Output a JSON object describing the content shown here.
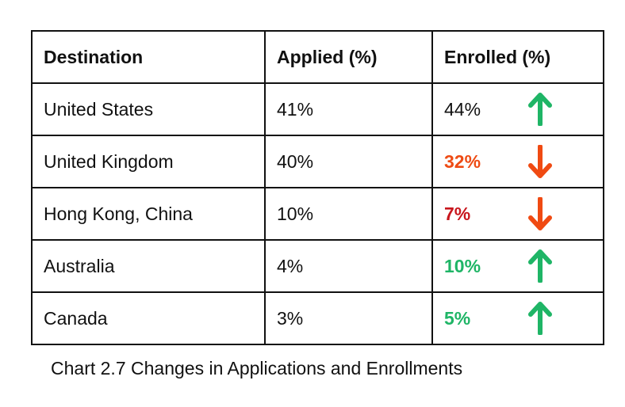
{
  "chart_data": {
    "type": "table",
    "columns": [
      "Destination",
      "Applied (%)",
      "Enrolled (%)"
    ],
    "rows": [
      {
        "destination": "United States",
        "applied": "41%",
        "enrolled": "44%",
        "direction": "up",
        "enrolled_color": "#111111",
        "enrolled_bold": false,
        "arrow_color": "#1fb566"
      },
      {
        "destination": "United Kingdom",
        "applied": "40%",
        "enrolled": "32%",
        "direction": "down",
        "enrolled_color": "#ee4b14",
        "enrolled_bold": true,
        "arrow_color": "#f04a12"
      },
      {
        "destination": "Hong Kong, China",
        "applied": "10%",
        "enrolled": "7%",
        "direction": "down",
        "enrolled_color": "#c8161d",
        "enrolled_bold": true,
        "arrow_color": "#f04a12"
      },
      {
        "destination": "Australia",
        "applied": "4%",
        "enrolled": "10%",
        "direction": "up",
        "enrolled_color": "#1fb566",
        "enrolled_bold": true,
        "arrow_color": "#1fb566"
      },
      {
        "destination": "Canada",
        "applied": "3%",
        "enrolled": "5%",
        "direction": "up",
        "enrolled_color": "#1fb566",
        "enrolled_bold": true,
        "arrow_color": "#1fb566"
      }
    ],
    "caption": "Chart 2.7  Changes in Applications and Enrollments"
  }
}
